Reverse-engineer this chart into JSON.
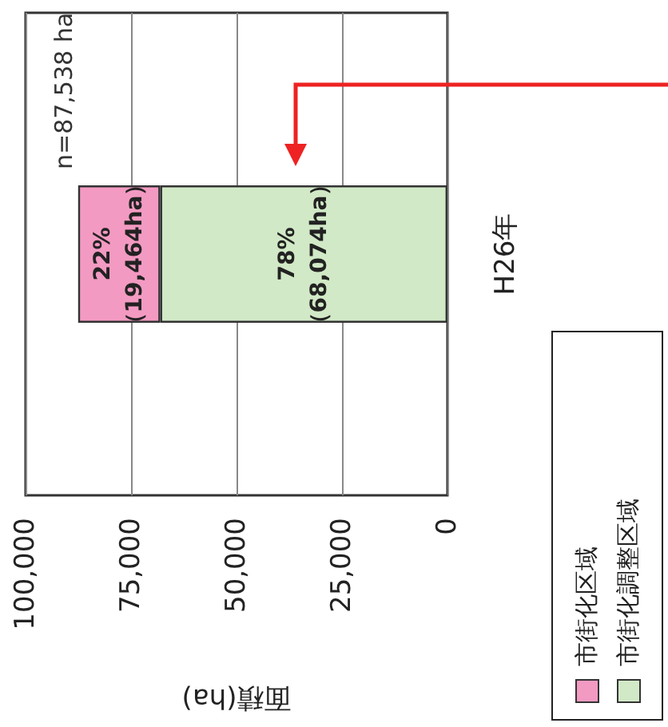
{
  "chart_data": {
    "type": "bar",
    "orientation": "horizontal",
    "categories": [
      "H26年"
    ],
    "xlabel": "面積(ha)",
    "annotations": [
      "n=87,538 ha"
    ],
    "series": [
      {
        "name": "市街化調整区域",
        "color": "#d1e9c6",
        "values": [
          68074
        ],
        "value_labels": [
          "78%\n（68,074ha）"
        ]
      },
      {
        "name": "市街化区域",
        "color": "#f39ac2",
        "values": [
          19464
        ],
        "value_labels": [
          "22%\n（19,464ha）"
        ]
      }
    ],
    "stacked": true,
    "xlim": [
      100000,
      0
    ],
    "xticks": [
      {
        "value": 100000,
        "label": "100,000"
      },
      {
        "value": 75000,
        "label": "75,000"
      },
      {
        "value": 50000,
        "label": "50,000"
      },
      {
        "value": 25000,
        "label": "25,000"
      },
      {
        "value": 0,
        "label": "0"
      }
    ],
    "grid": "x",
    "legend": "bottom right"
  }
}
